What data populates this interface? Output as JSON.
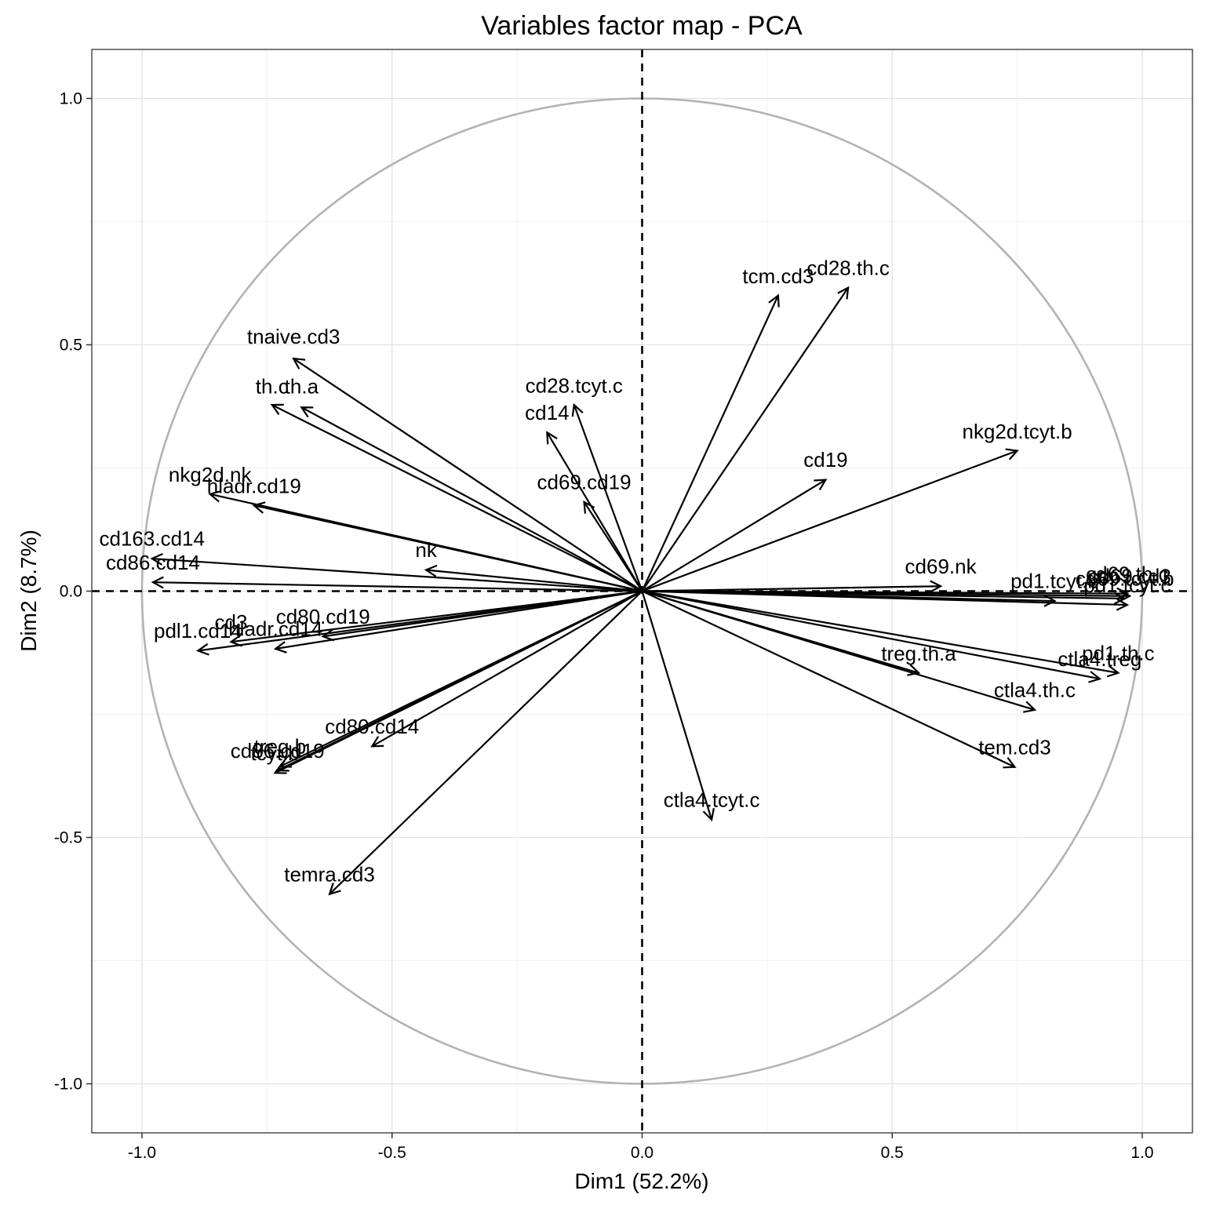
{
  "chart_data": {
    "type": "scatter",
    "title": "Variables factor map - PCA",
    "xlabel": "Dim1 (52.2%)",
    "ylabel": "Dim2 (8.7%)",
    "xlim": [
      -1.1,
      1.1
    ],
    "ylim": [
      -1.1,
      1.1
    ],
    "x_ticks": [
      -1.0,
      -0.5,
      0.0,
      0.5,
      1.0
    ],
    "y_ticks": [
      -1.0,
      -0.5,
      0.0,
      0.5,
      1.0
    ],
    "x_tick_labels": [
      "-1.0",
      "-0.5",
      "0.0",
      "0.5",
      "1.0"
    ],
    "y_tick_labels": [
      "-1.0",
      "-0.5",
      "0.0",
      "0.5",
      "1.0"
    ],
    "grid": true,
    "unit_circle": true,
    "variables": [
      {
        "name": "tcm.cd3",
        "x": 0.272,
        "y": 0.6
      },
      {
        "name": "cd28.th.c",
        "x": 0.412,
        "y": 0.616
      },
      {
        "name": "tnaive.cd3",
        "x": -0.697,
        "y": 0.472
      },
      {
        "name": "th.c",
        "x": -0.74,
        "y": 0.378
      },
      {
        "name": "th.a",
        "x": -0.681,
        "y": 0.373
      },
      {
        "name": "cd28.tcyt.c",
        "x": -0.136,
        "y": 0.378
      },
      {
        "name": "cd14",
        "x": -0.19,
        "y": 0.322
      },
      {
        "name": "nkg2d.tcyt.b",
        "x": 0.75,
        "y": 0.285
      },
      {
        "name": "cd19",
        "x": 0.367,
        "y": 0.226
      },
      {
        "name": "cd69.cd19",
        "x": -0.116,
        "y": 0.181
      },
      {
        "name": "nkg2d.nk",
        "x": -0.864,
        "y": 0.197
      },
      {
        "name": "hladr.cd19",
        "x": -0.776,
        "y": 0.174
      },
      {
        "name": "cd163.cd14",
        "x": -0.98,
        "y": 0.066
      },
      {
        "name": "cd86.cd14",
        "x": -0.978,
        "y": 0.018
      },
      {
        "name": "nk",
        "x": -0.432,
        "y": 0.043
      },
      {
        "name": "cd69.nk",
        "x": 0.597,
        "y": 0.01
      },
      {
        "name": "pd1.tcyt.b",
        "x": 0.825,
        "y": -0.02
      },
      {
        "name": "cd69.th.c",
        "x": 0.97,
        "y": -0.005
      },
      {
        "name": "cd69.cd3",
        "x": 0.975,
        "y": -0.01
      },
      {
        "name": "cd69.tcyt.b",
        "x": 0.965,
        "y": -0.015
      },
      {
        "name": "pd1.tcyt.c",
        "x": 0.97,
        "y": -0.028
      },
      {
        "name": "pdl1.cd14",
        "x": -0.888,
        "y": -0.121
      },
      {
        "name": "cd3",
        "x": -0.822,
        "y": -0.103
      },
      {
        "name": "hladr.cd14",
        "x": -0.733,
        "y": -0.117
      },
      {
        "name": "cd80.cd19",
        "x": -0.638,
        "y": -0.092
      },
      {
        "name": "treg.th.a",
        "x": 0.553,
        "y": -0.166
      },
      {
        "name": "pd1.th.c",
        "x": 0.952,
        "y": -0.166
      },
      {
        "name": "ctla4.treg",
        "x": 0.915,
        "y": -0.178
      },
      {
        "name": "ctla4.th.c",
        "x": 0.785,
        "y": -0.241
      },
      {
        "name": "tem.cd3",
        "x": 0.745,
        "y": -0.357
      },
      {
        "name": "cd80.cd14",
        "x": -0.54,
        "y": -0.315
      },
      {
        "name": "treg.b",
        "x": -0.724,
        "y": -0.356
      },
      {
        "name": "cd86.cd19",
        "x": -0.729,
        "y": -0.364
      },
      {
        "name": "tcyt.b",
        "x": -0.734,
        "y": -0.369
      },
      {
        "name": "ctla4.tcyt.c",
        "x": 0.139,
        "y": -0.464
      },
      {
        "name": "temra.cd3",
        "x": -0.625,
        "y": -0.615
      }
    ],
    "labels": [
      {
        "text": "tcm.cd3",
        "x": 0.272,
        "y": 0.625
      },
      {
        "text": "cd28.th.c",
        "x": 0.412,
        "y": 0.642
      },
      {
        "text": "tnaive.cd3",
        "x": -0.697,
        "y": 0.502
      },
      {
        "text": "th.c",
        "x": -0.74,
        "y": 0.401
      },
      {
        "text": "th.a",
        "x": -0.681,
        "y": 0.401
      },
      {
        "text": "cd28.tcyt.c",
        "x": -0.136,
        "y": 0.403
      },
      {
        "text": "cd14",
        "x": -0.19,
        "y": 0.348
      },
      {
        "text": "nkg2d.tcyt.b",
        "x": 0.75,
        "y": 0.31
      },
      {
        "text": "cd19",
        "x": 0.367,
        "y": 0.252
      },
      {
        "text": "cd69.cd19",
        "x": -0.116,
        "y": 0.207
      },
      {
        "text": "nkg2d.nk",
        "x": -0.864,
        "y": 0.222
      },
      {
        "text": "hladr.cd19",
        "x": -0.776,
        "y": 0.199
      },
      {
        "text": "cd163.cd14",
        "x": -0.98,
        "y": 0.092
      },
      {
        "text": "cd86.cd14",
        "x": -0.978,
        "y": 0.044
      },
      {
        "text": "nk",
        "x": -0.432,
        "y": 0.069
      },
      {
        "text": "cd69.nk",
        "x": 0.597,
        "y": 0.036
      },
      {
        "text": "pd1.tcyt.b",
        "x": 0.825,
        "y": 0.006
      },
      {
        "text": "cd69.th.c",
        "x": 0.97,
        "y": 0.021
      },
      {
        "text": "cd69.cd3",
        "x": 0.975,
        "y": 0.016
      },
      {
        "text": "cd69.tcyt.b",
        "x": 0.965,
        "y": 0.011
      },
      {
        "text": "pd1.tcyt.c",
        "x": 0.97,
        "y": -0.002
      },
      {
        "text": "pdl1.cd14",
        "x": -0.888,
        "y": -0.095
      },
      {
        "text": "cd3",
        "x": -0.822,
        "y": -0.077
      },
      {
        "text": "hladr.cd14",
        "x": -0.733,
        "y": -0.091
      },
      {
        "text": "cd80.cd19",
        "x": -0.638,
        "y": -0.066
      },
      {
        "text": "treg.th.a",
        "x": 0.553,
        "y": -0.141
      },
      {
        "text": "pd1.th.c",
        "x": 0.952,
        "y": -0.14
      },
      {
        "text": "ctla4.treg",
        "x": 0.915,
        "y": -0.152
      },
      {
        "text": "ctla4.th.c",
        "x": 0.785,
        "y": -0.215
      },
      {
        "text": "tem.cd3",
        "x": 0.745,
        "y": -0.331
      },
      {
        "text": "cd80.cd14",
        "x": -0.54,
        "y": -0.289
      },
      {
        "text": "treg.b",
        "x": -0.724,
        "y": -0.33
      },
      {
        "text": "cd86.cd19",
        "x": -0.729,
        "y": -0.338
      },
      {
        "text": "tcyt.b",
        "x": -0.734,
        "y": -0.343
      },
      {
        "text": "ctla4.tcyt.c",
        "x": 0.139,
        "y": -0.438
      },
      {
        "text": "temra.cd3",
        "x": -0.625,
        "y": -0.589
      }
    ]
  }
}
